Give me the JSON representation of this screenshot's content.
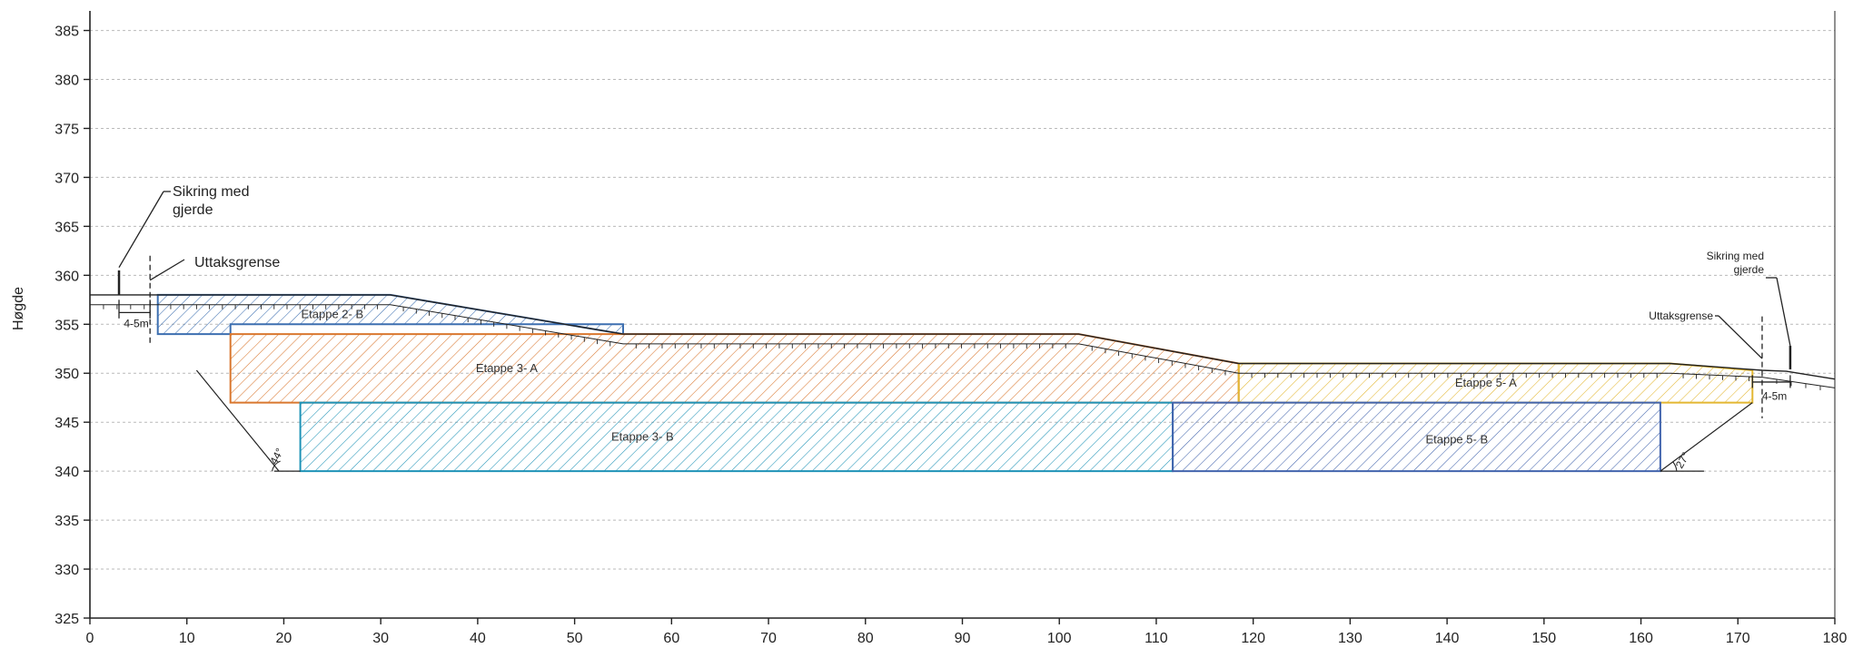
{
  "axes": {
    "ylabel": "Høgde",
    "x_ticks": [
      "0",
      "10",
      "20",
      "30",
      "40",
      "50",
      "60",
      "70",
      "80",
      "90",
      "100",
      "110",
      "120",
      "130",
      "140",
      "150",
      "160",
      "170",
      "180"
    ],
    "y_ticks": [
      "325",
      "330",
      "335",
      "340",
      "345",
      "350",
      "355",
      "360",
      "365",
      "370",
      "375",
      "380",
      "385"
    ],
    "x_range": [
      0,
      180
    ],
    "y_range": [
      325,
      387
    ],
    "grid": "horizontal dashed"
  },
  "zones": [
    {
      "id": "etappe-2-b",
      "label": "Etappe 2- B",
      "color": "#3d6fb0",
      "polygon": [
        [
          7,
          354
        ],
        [
          14.5,
          354
        ],
        [
          14.5,
          355
        ],
        [
          55,
          355
        ],
        [
          55,
          354
        ],
        [
          31,
          358
        ],
        [
          7,
          358
        ]
      ]
    },
    {
      "id": "etappe-3-a",
      "label": "Etappe 3- A",
      "color": "#d9772f",
      "polygon": [
        [
          14.5,
          347
        ],
        [
          118.5,
          347
        ],
        [
          118.5,
          351
        ],
        [
          102,
          354
        ],
        [
          14.5,
          354
        ]
      ]
    },
    {
      "id": "etappe-3-b",
      "label": "Etappe 3- B",
      "color": "#1f93b7",
      "polygon": [
        [
          21.7,
          340
        ],
        [
          111.7,
          340
        ],
        [
          111.7,
          347
        ],
        [
          21.7,
          347
        ]
      ]
    },
    {
      "id": "etappe-5-a",
      "label": "Etappe 5- A",
      "color": "#e3b732",
      "polygon": [
        [
          118.5,
          347
        ],
        [
          171.5,
          347
        ],
        [
          171.5,
          350.3
        ],
        [
          163,
          351
        ],
        [
          118.5,
          351
        ]
      ]
    },
    {
      "id": "etappe-5-b",
      "label": "Etappe 5- B",
      "color": "#4264ad",
      "polygon": [
        [
          111.7,
          340
        ],
        [
          162,
          340
        ],
        [
          162,
          347
        ],
        [
          111.7,
          347
        ]
      ]
    }
  ],
  "annotations": {
    "left_fence": "Sikring med\ngjerde",
    "left_limit": "Uttaksgrense",
    "left_offset": "4-5m",
    "right_fence": "Sikring med\ngjerde",
    "right_limit": "Uttaksgrense",
    "right_offset": "4-5m",
    "left_angle": "44°",
    "right_angle": "27°"
  }
}
